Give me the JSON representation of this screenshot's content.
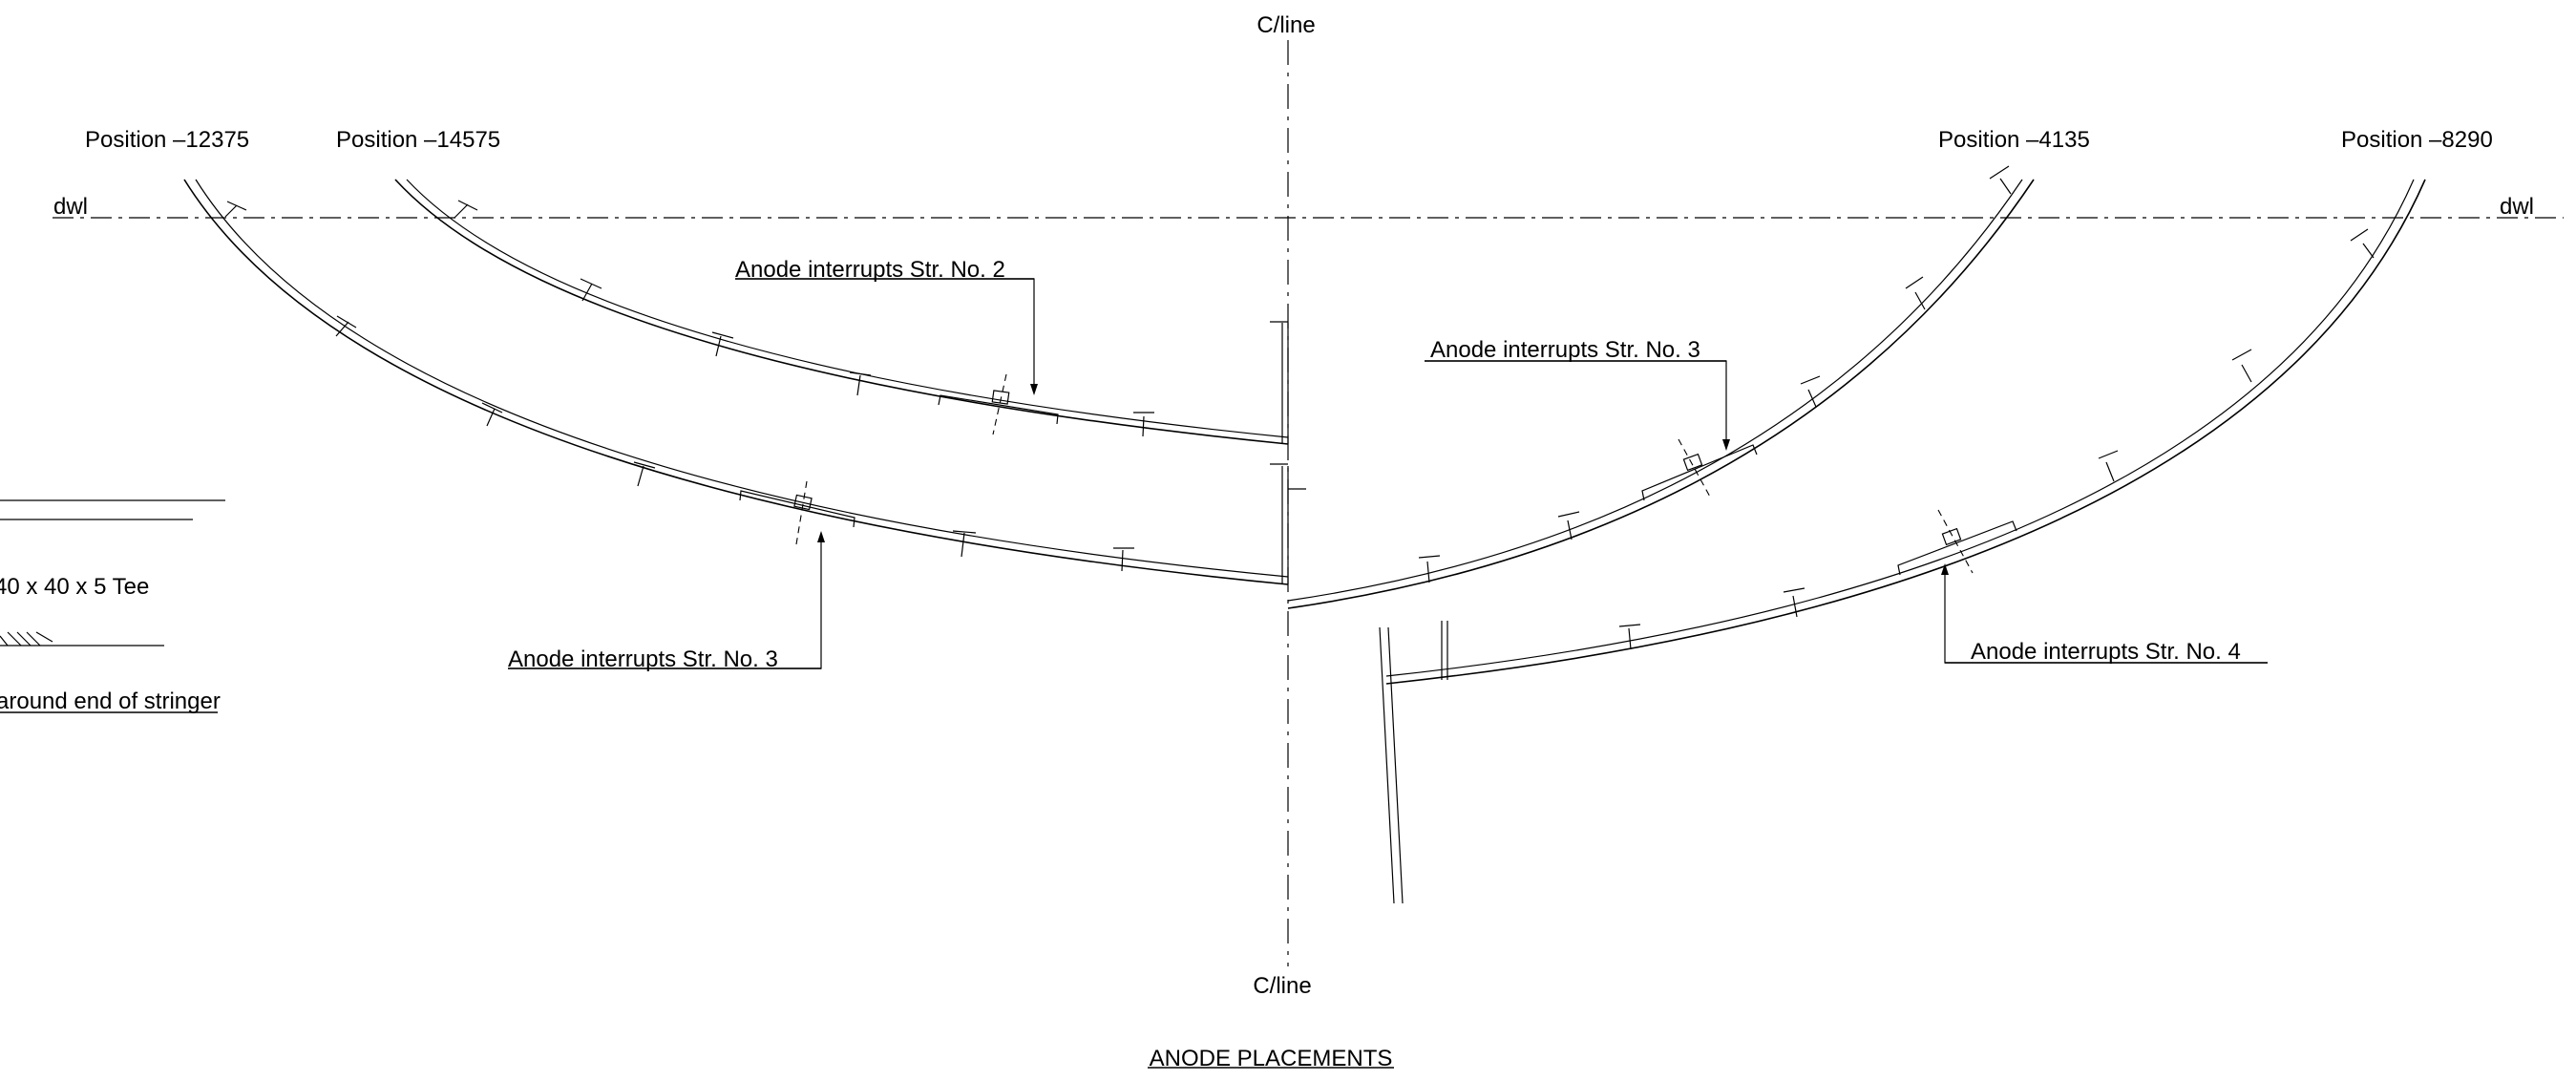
{
  "title": "ANODE PLACEMENTS",
  "centerline": {
    "top_label": "C/line",
    "bottom_label": "C/line"
  },
  "waterline": {
    "left_label": "dwl",
    "right_label": "dwl"
  },
  "positions": {
    "p12375": "Position –12375",
    "p14575": "Position –14575",
    "p4135": "Position –4135",
    "p8290": "Position –8290"
  },
  "callouts": {
    "str2": "Anode interrupts Str. No. 2",
    "str3_left": "Anode interrupts Str. No. 3",
    "str3_right": "Anode interrupts Str. No. 3",
    "str4": "Anode interrupts Str. No. 4"
  },
  "legend": {
    "tee": "40 x 40 x 5 Tee",
    "stringer_end": "around end of stringer"
  },
  "line_color": "#000000",
  "background_color": "#ffffff"
}
